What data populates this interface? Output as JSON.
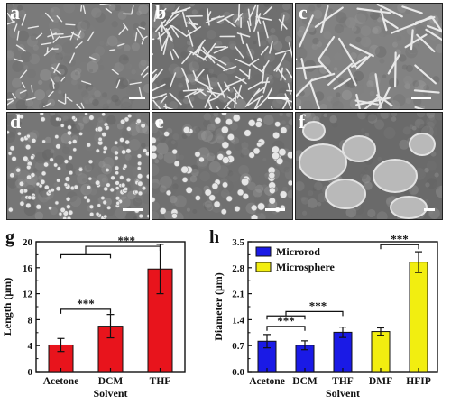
{
  "panels": {
    "a": "a",
    "b": "b",
    "c": "c",
    "d": "d",
    "e": "e",
    "f": "f",
    "g": "g",
    "h": "h"
  },
  "sem_images": [
    {
      "id": "a",
      "morphology": "short-rods-dense"
    },
    {
      "id": "b",
      "morphology": "rods-dense"
    },
    {
      "id": "c",
      "morphology": "long-rods-sparse"
    },
    {
      "id": "d",
      "morphology": "small-spheres-dense"
    },
    {
      "id": "e",
      "morphology": "spheres"
    },
    {
      "id": "f",
      "morphology": "large-blobs"
    }
  ],
  "chart_data": [
    {
      "type": "bar",
      "panel": "g",
      "categories": [
        "Acetone",
        "DCM",
        "THF"
      ],
      "values": [
        4.1,
        7.0,
        15.8
      ],
      "errors": [
        1.0,
        1.8,
        3.8
      ],
      "xlabel": "Solvent",
      "ylabel": "Length (μm)",
      "ylim": [
        0,
        20
      ],
      "yticks": [
        "0",
        "4",
        "8",
        "12",
        "16",
        "20"
      ],
      "bar_color": "#e8141c",
      "significance": [
        {
          "label": "***",
          "between": [
            "Acetone",
            "DCM"
          ]
        },
        {
          "label": "***",
          "between": [
            "Acetone+DCM",
            "THF"
          ]
        }
      ]
    },
    {
      "type": "bar",
      "panel": "h",
      "categories": [
        "Acetone",
        "DCM",
        "THF",
        "DMF",
        "HFIP"
      ],
      "values": [
        0.82,
        0.71,
        1.06,
        1.08,
        2.95
      ],
      "errors": [
        0.18,
        0.12,
        0.14,
        0.1,
        0.28
      ],
      "groups": [
        "Microrod",
        "Microrod",
        "Microrod",
        "Microsphere",
        "Microsphere"
      ],
      "series": [
        {
          "name": "Microrod",
          "color": "#1a1ae6"
        },
        {
          "name": "Microsphere",
          "color": "#f2ee10"
        }
      ],
      "xlabel": "Solvent",
      "ylabel": "Diameter (μm)",
      "ylim": [
        0,
        3.5
      ],
      "yticks": [
        "0.0",
        "0.7",
        "1.4",
        "2.1",
        "2.8",
        "3.5"
      ],
      "legend": "top-left",
      "significance": [
        {
          "label": "***",
          "between": [
            "Acetone",
            "DCM"
          ]
        },
        {
          "label": "***",
          "between": [
            "Acetone+DCM",
            "THF"
          ]
        },
        {
          "label": "***",
          "between": [
            "DMF",
            "HFIP"
          ]
        }
      ]
    }
  ]
}
